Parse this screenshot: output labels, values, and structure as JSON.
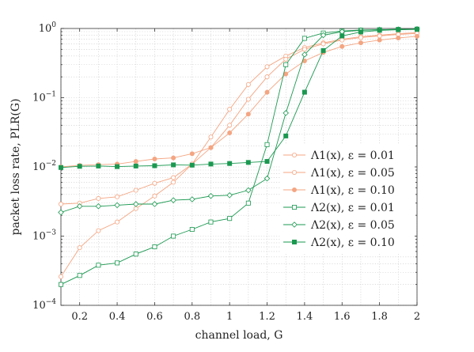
{
  "chart_data": {
    "type": "line",
    "xlabel": "channel load, G",
    "ylabel": "packet loss rate, PLR(G)",
    "xlim": [
      0.1,
      2.0
    ],
    "ylim": [
      0.0001,
      1
    ],
    "yscale": "log",
    "grid": true,
    "legend_position": "center-right",
    "x_ticks": [
      "0.2",
      "0.4",
      "0.6",
      "0.8",
      "1",
      "1.2",
      "1.4",
      "1.6",
      "1.8",
      "2"
    ],
    "x_tick_values": [
      0.2,
      0.4,
      0.6,
      0.8,
      1.0,
      1.2,
      1.4,
      1.6,
      1.8,
      2.0
    ],
    "y_ticks": [
      "10^-4",
      "10^-3",
      "10^-2",
      "10^-1",
      "10^0"
    ],
    "y_tick_values": [
      0.0001,
      0.001,
      0.01,
      0.1,
      1
    ],
    "x": [
      0.1,
      0.2,
      0.3,
      0.4,
      0.5,
      0.6,
      0.7,
      0.8,
      0.9,
      1.0,
      1.1,
      1.2,
      1.3,
      1.4,
      1.5,
      1.6,
      1.7,
      1.8,
      1.9,
      2.0
    ],
    "series": [
      {
        "name": "Λ1(x), ε = 0.01",
        "color": "#f4a582",
        "marker": "circle-open",
        "values": [
          0.00026,
          0.00068,
          0.0012,
          0.0016,
          0.0025,
          0.0038,
          0.006,
          0.011,
          0.027,
          0.068,
          0.155,
          0.28,
          0.4,
          0.53,
          0.62,
          0.7,
          0.76,
          0.8,
          0.84,
          0.87
        ]
      },
      {
        "name": "Λ1(x), ε = 0.05",
        "color": "#f4a582",
        "marker": "circle-open",
        "values": [
          0.0029,
          0.003,
          0.0035,
          0.0037,
          0.0046,
          0.0058,
          0.007,
          0.011,
          0.019,
          0.04,
          0.095,
          0.2,
          0.36,
          0.5,
          0.6,
          0.68,
          0.74,
          0.78,
          0.82,
          0.85
        ]
      },
      {
        "name": "Λ1(x), ε = 0.10",
        "color": "#f4a582",
        "marker": "circle-filled",
        "values": [
          0.01,
          0.0105,
          0.0108,
          0.011,
          0.012,
          0.013,
          0.0135,
          0.0155,
          0.019,
          0.031,
          0.058,
          0.12,
          0.22,
          0.34,
          0.45,
          0.55,
          0.62,
          0.68,
          0.73,
          0.77
        ]
      },
      {
        "name": "Λ2(x), ε = 0.01",
        "color": "#1a9850",
        "marker": "square-open",
        "values": [
          0.0002,
          0.00027,
          0.00038,
          0.00041,
          0.00055,
          0.0007,
          0.001,
          0.00125,
          0.0016,
          0.0018,
          0.003,
          0.021,
          0.3,
          0.72,
          0.86,
          0.92,
          0.95,
          0.96,
          0.97,
          0.98
        ]
      },
      {
        "name": "Λ2(x), ε = 0.05",
        "color": "#1a9850",
        "marker": "diamond-open",
        "values": [
          0.0022,
          0.0027,
          0.0027,
          0.0028,
          0.0029,
          0.0029,
          0.0033,
          0.0034,
          0.0038,
          0.0039,
          0.0046,
          0.0068,
          0.06,
          0.42,
          0.8,
          0.9,
          0.94,
          0.96,
          0.97,
          0.98
        ]
      },
      {
        "name": "Λ2(x), ε = 0.10",
        "color": "#1a9850",
        "marker": "square-filled",
        "values": [
          0.0098,
          0.0102,
          0.0103,
          0.0101,
          0.0103,
          0.0104,
          0.0107,
          0.0106,
          0.011,
          0.0112,
          0.0116,
          0.012,
          0.028,
          0.12,
          0.48,
          0.78,
          0.89,
          0.94,
          0.96,
          0.97
        ]
      }
    ]
  }
}
